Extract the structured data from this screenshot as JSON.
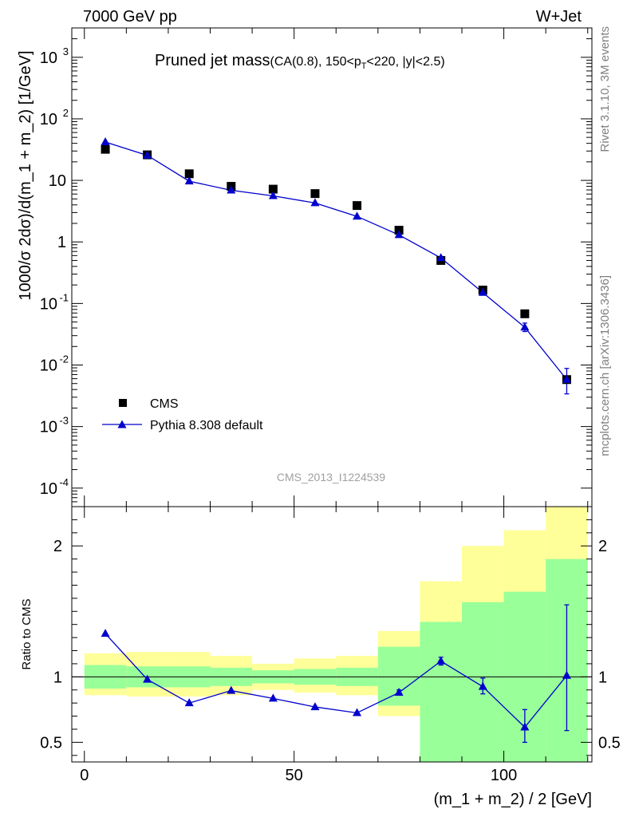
{
  "header": {
    "left": "7000 GeV pp",
    "right": "W+Jet"
  },
  "title": {
    "main": "Pruned jet mass",
    "selection_prefix": "(CA(0.8), 150<p",
    "selection_sub": "T",
    "selection_suffix": "<220, |y|<2.5)"
  },
  "side_labels": {
    "top": "Rivet 3.1.10,  3M events",
    "bottom": "mcplots.cern.ch [arXiv:1306.3436]"
  },
  "watermark": "CMS_2013_I1224539",
  "colors": {
    "data": "#000000",
    "mc": "#0000cc",
    "band_inner": "#99ff99",
    "band_outer": "#ffff99",
    "ref_line": "#000000"
  },
  "chart_data": [
    {
      "type": "scatter",
      "panel": "main",
      "ylabel": "1000/σ 2dσ)/d(m_1 + m_2) [1/GeV]",
      "yscale": "log",
      "ylim": [
        5e-05,
        3000
      ],
      "xlim": [
        -3,
        121
      ],
      "y_ticks": [
        {
          "value": 0.0001,
          "label": "10",
          "exp": "-4"
        },
        {
          "value": 0.001,
          "label": "10",
          "exp": "-3"
        },
        {
          "value": 0.01,
          "label": "10",
          "exp": "-2"
        },
        {
          "value": 0.1,
          "label": "10",
          "exp": "-1"
        },
        {
          "value": 1,
          "label": "1",
          "exp": ""
        },
        {
          "value": 10,
          "label": "10",
          "exp": ""
        },
        {
          "value": 100,
          "label": "10",
          "exp": "2"
        },
        {
          "value": 1000,
          "label": "10",
          "exp": "3"
        }
      ],
      "x": [
        5,
        15,
        25,
        35,
        45,
        55,
        65,
        75,
        85,
        95,
        105,
        115
      ],
      "series": [
        {
          "name": "CMS",
          "marker": "square",
          "values": [
            32,
            26,
            12.8,
            8.0,
            7.2,
            6.1,
            3.9,
            1.55,
            0.5,
            0.165,
            0.068,
            0.0058
          ]
        },
        {
          "name": "Pythia 8.308 default",
          "marker": "triangle",
          "values": [
            42,
            25.5,
            9.7,
            6.9,
            5.6,
            4.3,
            2.6,
            1.3,
            0.55,
            0.15,
            0.041,
            0.0058
          ],
          "err_low": [
            null,
            null,
            null,
            null,
            null,
            null,
            null,
            null,
            null,
            null,
            0.035,
            0.0034
          ],
          "err_high": [
            null,
            null,
            null,
            null,
            null,
            null,
            null,
            null,
            null,
            null,
            0.048,
            0.0088
          ]
        }
      ]
    },
    {
      "type": "line",
      "panel": "ratio",
      "ylabel": "Ratio to CMS",
      "xlabel": "(m_1 + m_2) / 2 [GeV]",
      "ylim": [
        0.35,
        2.3
      ],
      "xlim": [
        -3,
        121
      ],
      "y_ticks": [
        0.5,
        1,
        2
      ],
      "x_ticks": [
        0,
        50,
        100
      ],
      "bin_edges": [
        0,
        10,
        20,
        30,
        40,
        50,
        60,
        70,
        80,
        90,
        100,
        110,
        120
      ],
      "band_inner_low": [
        0.91,
        0.92,
        0.92,
        0.93,
        0.95,
        0.94,
        0.93,
        0.78,
        0.0,
        0.0,
        0.0,
        0.0
      ],
      "band_inner_high": [
        1.09,
        1.08,
        1.08,
        1.07,
        1.05,
        1.06,
        1.07,
        1.23,
        1.42,
        1.57,
        1.65,
        1.9
      ],
      "band_outer_low": [
        0.86,
        0.85,
        0.85,
        0.86,
        0.9,
        0.88,
        0.86,
        0.7,
        0.68,
        0.47,
        0.0,
        0.0
      ],
      "band_outer_high": [
        1.18,
        1.19,
        1.19,
        1.16,
        1.1,
        1.14,
        1.16,
        1.35,
        1.73,
        2.0,
        2.12,
        2.3
      ],
      "x": [
        5,
        15,
        25,
        35,
        45,
        55,
        65,
        75,
        85,
        95,
        105,
        115
      ],
      "series": [
        {
          "name": "Pythia 8.308 default",
          "values": [
            1.33,
            0.98,
            0.8,
            0.895,
            0.835,
            0.77,
            0.725,
            0.88,
            1.12,
            0.925,
            0.615,
            1.01
          ],
          "err_low": [
            null,
            null,
            null,
            null,
            null,
            null,
            null,
            0.86,
            1.09,
            0.87,
            0.5,
            0.59
          ],
          "err_high": [
            null,
            null,
            null,
            null,
            null,
            null,
            null,
            0.9,
            1.15,
            0.99,
            0.75,
            1.55
          ]
        }
      ]
    }
  ]
}
